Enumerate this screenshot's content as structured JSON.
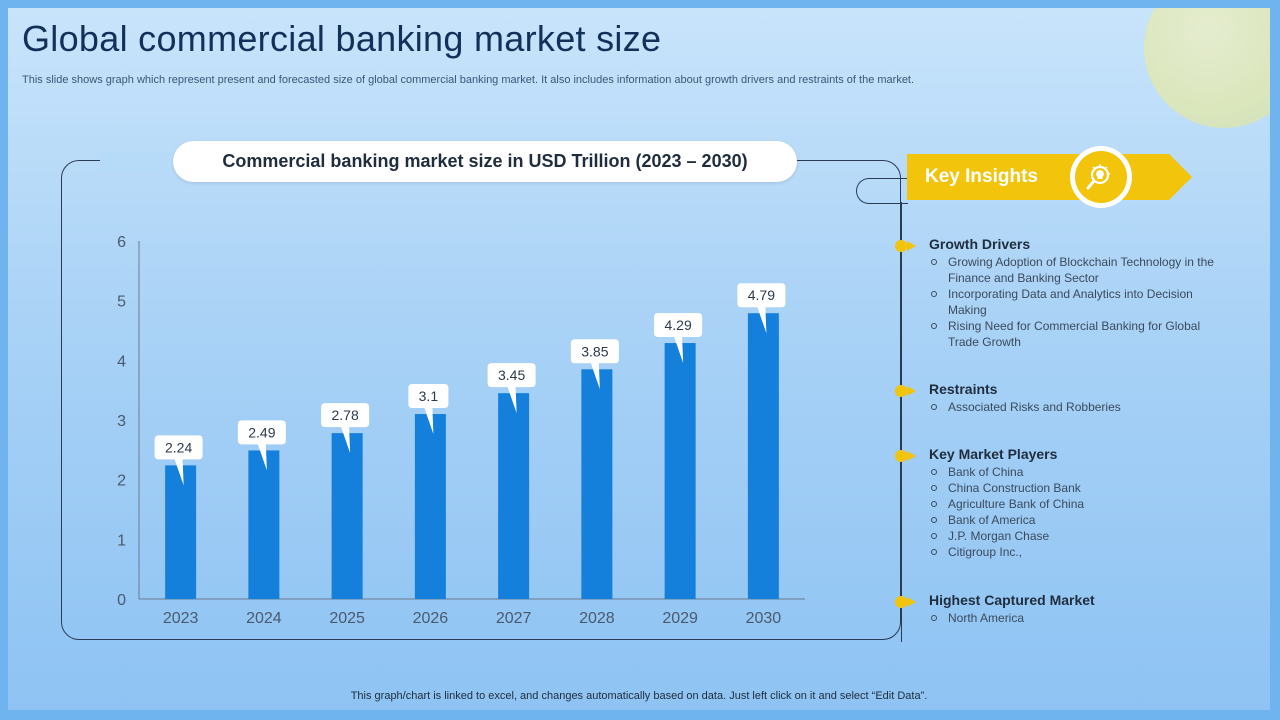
{
  "page": {
    "title": "Global commercial banking market size",
    "subtitle": "This slide shows graph which represent present and forecasted size of global commercial banking market. It also includes information about growth drivers and restraints of the market.",
    "footnote": "This graph/chart is linked to excel,  and changes automatically based on data. Just left click on it and select “Edit Data”."
  },
  "chart_data": {
    "type": "bar",
    "title": "Commercial banking market size in USD Trillion (2023 – 2030)",
    "categories": [
      "2023",
      "2024",
      "2025",
      "2026",
      "2027",
      "2028",
      "2029",
      "2030"
    ],
    "values": [
      2.24,
      2.49,
      2.78,
      3.1,
      3.45,
      3.85,
      4.29,
      4.79
    ],
    "data_labels": [
      "2.24",
      "2.49",
      "2.78",
      "3.1",
      "3.45",
      "3.85",
      "4.29",
      "4.79"
    ],
    "ylim": [
      0,
      6
    ],
    "yticks": [
      "0",
      "1",
      "2",
      "3",
      "4",
      "5",
      "6"
    ],
    "xlabel": "",
    "ylabel": "",
    "grid": false,
    "bar_color": "#1580dc"
  },
  "insights": {
    "label": "Key Insights",
    "icon": "lightbulb-search-icon",
    "accent_color": "#f2c40c",
    "sections": [
      {
        "heading": "Growth Drivers",
        "items": [
          "Growing Adoption of Blockchain Technology in the Finance and Banking Sector",
          "Incorporating Data and Analytics into Decision Making",
          "Rising Need for Commercial Banking for Global Trade Growth"
        ]
      },
      {
        "heading": "Restraints",
        "items": [
          "Associated Risks and Robberies"
        ]
      },
      {
        "heading": "Key Market Players",
        "items": [
          "Bank of China",
          "China Construction Bank",
          "Agriculture Bank of China",
          "Bank of America",
          "J.P. Morgan Chase",
          "Citigroup Inc.,"
        ]
      },
      {
        "heading": "Highest Captured Market",
        "items": [
          "North America"
        ]
      }
    ]
  }
}
